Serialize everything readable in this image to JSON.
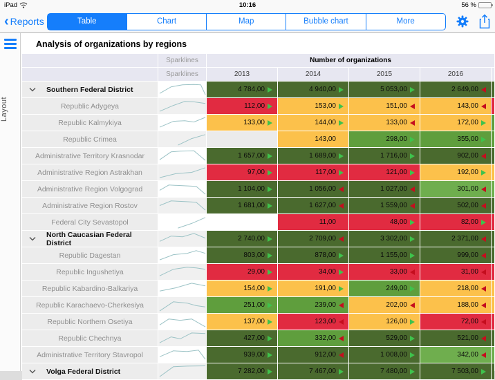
{
  "status_bar": {
    "device": "iPad",
    "time": "10:16",
    "battery": "56 %"
  },
  "nav": {
    "back_label": "Reports",
    "segments": [
      {
        "label": "Table",
        "selected": true
      },
      {
        "label": "Chart",
        "selected": false
      },
      {
        "label": "Map",
        "selected": false
      },
      {
        "label": "Bubble chart",
        "selected": false
      },
      {
        "label": "More",
        "selected": false
      }
    ]
  },
  "sidebar": {
    "menu_label": "Layout"
  },
  "report": {
    "title": "Analysis of organizations by regions"
  },
  "table": {
    "headers": {
      "sparklines": "Sparklines",
      "group": "Number of organizations",
      "years": [
        "2013",
        "2014",
        "2015",
        "2016"
      ]
    },
    "colors": {
      "dark_green": "#4a6a2e",
      "green": "#5f9e3d",
      "light_green": "#6fae4e",
      "amber": "#fcc14b",
      "red": "#e12b41",
      "empty_gray": "#ebebeb",
      "white": "#ffffff",
      "accent_blue": "#157efb",
      "arrow_up_green": "#3fc24c",
      "arrow_down_red": "#c50d1e",
      "spark_line": "#9cc3c6",
      "header_bg": "#e7e7f1"
    },
    "rows": [
      {
        "label": "Southern Federal District",
        "group": true,
        "spark": [
          [
            0,
            80
          ],
          [
            25,
            30
          ],
          [
            50,
            15
          ],
          [
            75,
            12
          ],
          [
            90,
            15
          ],
          [
            100,
            90
          ]
        ],
        "cells": [
          {
            "v": "4 784,00",
            "bg": "dark_green",
            "arrow": "up"
          },
          {
            "v": "4 940,00",
            "bg": "dark_green",
            "arrow": "up"
          },
          {
            "v": "5 053,00",
            "bg": "dark_green",
            "arrow": "up"
          },
          {
            "v": "2 649,00",
            "bg": "dark_green",
            "arrow": "down"
          }
        ],
        "next": "dark_green"
      },
      {
        "label": "Republic Adygeya",
        "group": false,
        "spark": [
          [
            0,
            90
          ],
          [
            30,
            45
          ],
          [
            55,
            15
          ],
          [
            75,
            18
          ],
          [
            100,
            30
          ]
        ],
        "cells": [
          {
            "v": "112,00",
            "bg": "red",
            "arrow": "up"
          },
          {
            "v": "153,00",
            "bg": "amber",
            "arrow": "up"
          },
          {
            "v": "151,00",
            "bg": "amber",
            "arrow": "down"
          },
          {
            "v": "143,00",
            "bg": "amber",
            "arrow": "down"
          }
        ],
        "next": "red"
      },
      {
        "label": "Republic Kalmykiya",
        "group": false,
        "spark": [
          [
            0,
            85
          ],
          [
            30,
            40
          ],
          [
            55,
            35
          ],
          [
            75,
            45
          ],
          [
            100,
            10
          ]
        ],
        "cells": [
          {
            "v": "133,00",
            "bg": "amber",
            "arrow": "up"
          },
          {
            "v": "144,00",
            "bg": "amber",
            "arrow": "up"
          },
          {
            "v": "133,00",
            "bg": "amber",
            "arrow": "down"
          },
          {
            "v": "172,00",
            "bg": "amber",
            "arrow": "up"
          }
        ],
        "next": "green"
      },
      {
        "label": "Republic Crimea",
        "group": false,
        "spark": [
          [
            40,
            95
          ],
          [
            70,
            45
          ],
          [
            100,
            15
          ]
        ],
        "cells": [
          {
            "v": "",
            "bg": "empty_gray",
            "arrow": "none"
          },
          {
            "v": "143,00",
            "bg": "amber",
            "arrow": "none"
          },
          {
            "v": "298,00",
            "bg": "green",
            "arrow": "up"
          },
          {
            "v": "355,00",
            "bg": "green",
            "arrow": "up"
          }
        ],
        "next": "green"
      },
      {
        "label": "Administrative Territory Krasnodar",
        "group": false,
        "spark": [
          [
            0,
            80
          ],
          [
            25,
            20
          ],
          [
            45,
            15
          ],
          [
            75,
            12
          ],
          [
            100,
            85
          ]
        ],
        "cells": [
          {
            "v": "1 657,00",
            "bg": "dark_green",
            "arrow": "up"
          },
          {
            "v": "1 689,00",
            "bg": "dark_green",
            "arrow": "up"
          },
          {
            "v": "1 716,00",
            "bg": "dark_green",
            "arrow": "up"
          },
          {
            "v": "902,00",
            "bg": "dark_green",
            "arrow": "down"
          }
        ],
        "next": "dark_green"
      },
      {
        "label": "Administrative Region Astrakhan",
        "group": false,
        "spark": [
          [
            0,
            90
          ],
          [
            35,
            60
          ],
          [
            70,
            50
          ],
          [
            100,
            15
          ]
        ],
        "cells": [
          {
            "v": "97,00",
            "bg": "red",
            "arrow": "up"
          },
          {
            "v": "117,00",
            "bg": "red",
            "arrow": "up"
          },
          {
            "v": "121,00",
            "bg": "red",
            "arrow": "up"
          },
          {
            "v": "192,00",
            "bg": "amber",
            "arrow": "up"
          }
        ],
        "next": "amber"
      },
      {
        "label": "Administrative Region Volgograd",
        "group": false,
        "spark": [
          [
            0,
            60
          ],
          [
            20,
            20
          ],
          [
            50,
            25
          ],
          [
            80,
            30
          ],
          [
            100,
            90
          ]
        ],
        "cells": [
          {
            "v": "1 104,00",
            "bg": "dark_green",
            "arrow": "up"
          },
          {
            "v": "1 056,00",
            "bg": "dark_green",
            "arrow": "down"
          },
          {
            "v": "1 027,00",
            "bg": "dark_green",
            "arrow": "down"
          },
          {
            "v": "301,00",
            "bg": "light_green",
            "arrow": "down"
          }
        ],
        "next": "light_green"
      },
      {
        "label": "Administrative Region Rostov",
        "group": false,
        "spark": [
          [
            0,
            50
          ],
          [
            25,
            15
          ],
          [
            55,
            20
          ],
          [
            80,
            25
          ],
          [
            100,
            85
          ]
        ],
        "cells": [
          {
            "v": "1 681,00",
            "bg": "dark_green",
            "arrow": "up"
          },
          {
            "v": "1 627,00",
            "bg": "dark_green",
            "arrow": "down"
          },
          {
            "v": "1 559,00",
            "bg": "dark_green",
            "arrow": "down"
          },
          {
            "v": "502,00",
            "bg": "dark_green",
            "arrow": "down"
          }
        ],
        "next": "dark_green"
      },
      {
        "label": "Federal City Sevastopol",
        "group": false,
        "spark": [
          [
            40,
            95
          ],
          [
            70,
            60
          ],
          [
            100,
            15
          ]
        ],
        "cells": [
          {
            "v": "",
            "bg": "white",
            "arrow": "none"
          },
          {
            "v": "11,00",
            "bg": "red",
            "arrow": "none"
          },
          {
            "v": "48,00",
            "bg": "red",
            "arrow": "up"
          },
          {
            "v": "82,00",
            "bg": "red",
            "arrow": "up"
          }
        ],
        "next": "red"
      },
      {
        "label": "North Caucasian Federal District",
        "group": true,
        "spark": [
          [
            0,
            70
          ],
          [
            25,
            30
          ],
          [
            50,
            35
          ],
          [
            75,
            10
          ],
          [
            100,
            45
          ]
        ],
        "cells": [
          {
            "v": "2 740,00",
            "bg": "dark_green",
            "arrow": "up"
          },
          {
            "v": "2 709,00",
            "bg": "dark_green",
            "arrow": "down"
          },
          {
            "v": "3 302,00",
            "bg": "dark_green",
            "arrow": "up"
          },
          {
            "v": "2 371,00",
            "bg": "dark_green",
            "arrow": "down"
          }
        ],
        "next": "dark_green"
      },
      {
        "label": "Republic Dagestan",
        "group": false,
        "spark": [
          [
            0,
            85
          ],
          [
            30,
            45
          ],
          [
            60,
            35
          ],
          [
            80,
            15
          ],
          [
            100,
            35
          ]
        ],
        "cells": [
          {
            "v": "803,00",
            "bg": "dark_green",
            "arrow": "up"
          },
          {
            "v": "878,00",
            "bg": "dark_green",
            "arrow": "up"
          },
          {
            "v": "1 155,00",
            "bg": "dark_green",
            "arrow": "up"
          },
          {
            "v": "999,00",
            "bg": "dark_green",
            "arrow": "down"
          }
        ],
        "next": "dark_green"
      },
      {
        "label": "Republic Ingushetiya",
        "group": false,
        "spark": [
          [
            0,
            80
          ],
          [
            30,
            30
          ],
          [
            60,
            15
          ],
          [
            80,
            20
          ],
          [
            100,
            30
          ]
        ],
        "cells": [
          {
            "v": "29,00",
            "bg": "red",
            "arrow": "up"
          },
          {
            "v": "34,00",
            "bg": "red",
            "arrow": "up"
          },
          {
            "v": "33,00",
            "bg": "red",
            "arrow": "down"
          },
          {
            "v": "31,00",
            "bg": "red",
            "arrow": "down"
          }
        ],
        "next": "red"
      },
      {
        "label": "Republic Kabardino-Balkariya",
        "group": false,
        "spark": [
          [
            0,
            70
          ],
          [
            35,
            45
          ],
          [
            70,
            10
          ],
          [
            100,
            30
          ]
        ],
        "cells": [
          {
            "v": "154,00",
            "bg": "amber",
            "arrow": "up"
          },
          {
            "v": "191,00",
            "bg": "amber",
            "arrow": "up"
          },
          {
            "v": "249,00",
            "bg": "green",
            "arrow": "up"
          },
          {
            "v": "218,00",
            "bg": "amber",
            "arrow": "down"
          }
        ],
        "next": "amber"
      },
      {
        "label": "Republic Karachaevo-Cherkesiya",
        "group": false,
        "spark": [
          [
            0,
            95
          ],
          [
            30,
            25
          ],
          [
            60,
            35
          ],
          [
            80,
            55
          ],
          [
            100,
            65
          ]
        ],
        "cells": [
          {
            "v": "251,00",
            "bg": "green",
            "arrow": "up"
          },
          {
            "v": "239,00",
            "bg": "green",
            "arrow": "down"
          },
          {
            "v": "202,00",
            "bg": "amber",
            "arrow": "down"
          },
          {
            "v": "188,00",
            "bg": "amber",
            "arrow": "down"
          }
        ],
        "next": "amber"
      },
      {
        "label": "Republic Northern Osetiya",
        "group": false,
        "spark": [
          [
            0,
            75
          ],
          [
            20,
            30
          ],
          [
            45,
            40
          ],
          [
            70,
            30
          ],
          [
            100,
            90
          ]
        ],
        "cells": [
          {
            "v": "137,00",
            "bg": "amber",
            "arrow": "up"
          },
          {
            "v": "123,00",
            "bg": "red",
            "arrow": "down"
          },
          {
            "v": "126,00",
            "bg": "amber",
            "arrow": "up"
          },
          {
            "v": "72,00",
            "bg": "red",
            "arrow": "down"
          }
        ],
        "next": "red"
      },
      {
        "label": "Republic Chechnya",
        "group": false,
        "spark": [
          [
            0,
            85
          ],
          [
            25,
            40
          ],
          [
            45,
            55
          ],
          [
            70,
            10
          ],
          [
            100,
            15
          ]
        ],
        "cells": [
          {
            "v": "427,00",
            "bg": "dark_green",
            "arrow": "up"
          },
          {
            "v": "332,00",
            "bg": "green",
            "arrow": "down"
          },
          {
            "v": "529,00",
            "bg": "dark_green",
            "arrow": "up"
          },
          {
            "v": "521,00",
            "bg": "dark_green",
            "arrow": "down"
          }
        ],
        "next": "dark_green"
      },
      {
        "label": "Administrative Territory Stavropol",
        "group": false,
        "spark": [
          [
            0,
            65
          ],
          [
            30,
            20
          ],
          [
            60,
            25
          ],
          [
            85,
            15
          ],
          [
            100,
            85
          ]
        ],
        "cells": [
          {
            "v": "939,00",
            "bg": "dark_green",
            "arrow": "up"
          },
          {
            "v": "912,00",
            "bg": "dark_green",
            "arrow": "down"
          },
          {
            "v": "1 008,00",
            "bg": "dark_green",
            "arrow": "up"
          },
          {
            "v": "342,00",
            "bg": "light_green",
            "arrow": "down"
          }
        ],
        "next": "light_green"
      },
      {
        "label": "Volga Federal District",
        "group": true,
        "spark": [
          [
            0,
            90
          ],
          [
            30,
            15
          ],
          [
            60,
            10
          ],
          [
            100,
            8
          ]
        ],
        "cells": [
          {
            "v": "7 282,00",
            "bg": "dark_green",
            "arrow": "up"
          },
          {
            "v": "7 467,00",
            "bg": "dark_green",
            "arrow": "up"
          },
          {
            "v": "7 480,00",
            "bg": "dark_green",
            "arrow": "up"
          },
          {
            "v": "7 503,00",
            "bg": "dark_green",
            "arrow": "up"
          }
        ],
        "next": "dark_green"
      }
    ]
  }
}
